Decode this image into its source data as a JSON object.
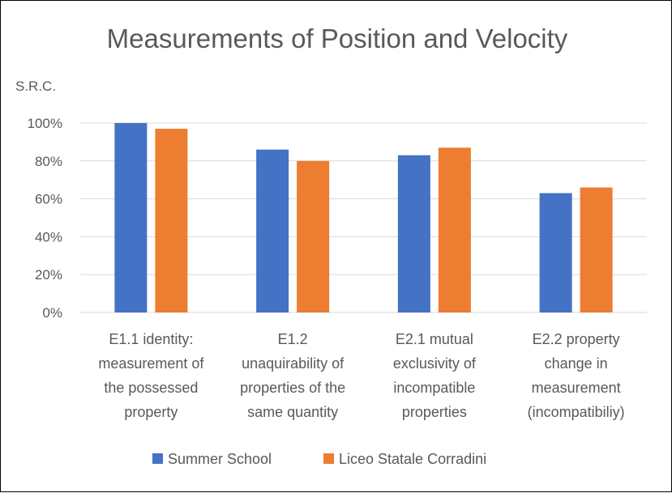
{
  "chart_data": {
    "type": "bar",
    "title": "Measurements of Position and Velocity",
    "xlabel": "",
    "ylabel": "S.R.C.",
    "ylim": [
      0,
      100
    ],
    "ytick_values": [
      0,
      20,
      40,
      60,
      80,
      100
    ],
    "ytick_labels": [
      "0%",
      "20%",
      "40%",
      "60%",
      "80%",
      "100%"
    ],
    "grid": true,
    "legend_position": "bottom",
    "categories": [
      [
        "E1.1 identity:",
        "measurement of",
        "the possessed",
        "property"
      ],
      [
        "E1.2",
        "unaquirability of",
        "properties of the",
        "same quantity"
      ],
      [
        "E2.1 mutual",
        "exclusivity of",
        "incompatible",
        "properties"
      ],
      [
        "E2.2 property",
        "change in",
        "measurement",
        "(incompatibiliy)"
      ]
    ],
    "series": [
      {
        "name": "Summer School",
        "color": "#4472c4",
        "values": [
          100,
          86,
          83,
          63
        ]
      },
      {
        "name": "Liceo Statale Corradini",
        "color": "#ed7d31",
        "values": [
          97,
          80,
          87,
          66
        ]
      }
    ]
  }
}
